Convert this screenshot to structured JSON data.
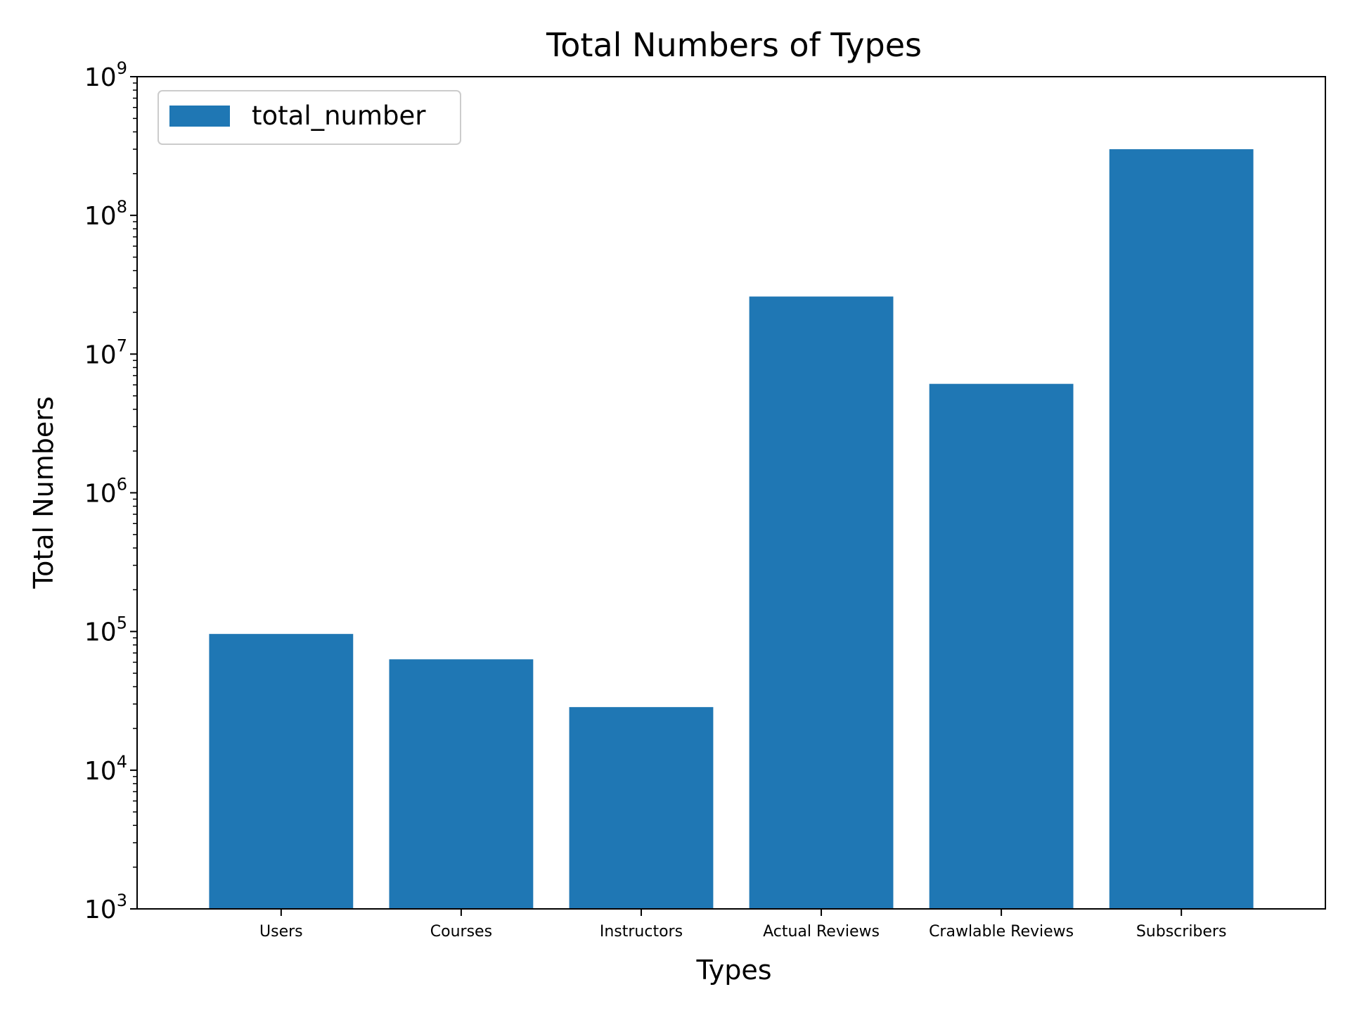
{
  "chart_data": {
    "type": "bar",
    "title": "Total Numbers of Types",
    "xlabel": "Types",
    "ylabel": "Total Numbers",
    "yscale": "log",
    "ylim": [
      1000,
      1000000000
    ],
    "ytick_labels": [
      {
        "base": "10",
        "exp": "3"
      },
      {
        "base": "10",
        "exp": "4"
      },
      {
        "base": "10",
        "exp": "5"
      },
      {
        "base": "10",
        "exp": "6"
      },
      {
        "base": "10",
        "exp": "7"
      },
      {
        "base": "10",
        "exp": "8"
      },
      {
        "base": "10",
        "exp": "9"
      }
    ],
    "categories": [
      "Users",
      "Courses",
      "Instructors",
      "Actual Reviews",
      "Crawlable Reviews",
      "Subscribers"
    ],
    "series": [
      {
        "name": "total_number",
        "values": [
          96000,
          63000,
          28500,
          26000000,
          6100000,
          300000000
        ],
        "color": "#1f77b4"
      }
    ],
    "legend": {
      "placement": "top-left",
      "label": "total_number"
    },
    "grid": false
  }
}
